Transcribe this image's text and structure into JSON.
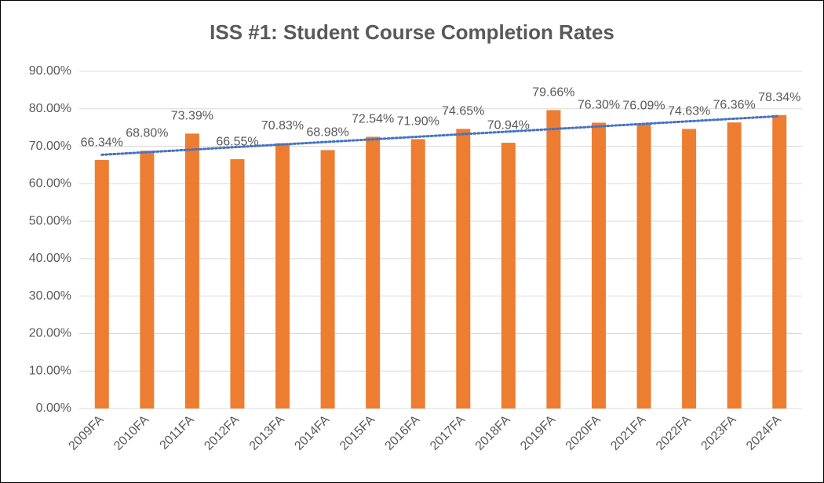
{
  "chart_data": {
    "type": "bar",
    "title": "ISS #1: Student Course Completion Rates",
    "categories": [
      "2009FA",
      "2010FA",
      "2011FA",
      "2012FA",
      "2013FA",
      "2014FA",
      "2015FA",
      "2016FA",
      "2017FA",
      "2018FA",
      "2019FA",
      "2020FA",
      "2021FA",
      "2022FA",
      "2023FA",
      "2024FA"
    ],
    "values": [
      66.34,
      68.8,
      73.39,
      66.55,
      70.83,
      68.98,
      72.54,
      71.9,
      74.65,
      70.94,
      79.66,
      76.3,
      76.09,
      74.63,
      76.36,
      78.34
    ],
    "value_labels": [
      "66.34%",
      "68.80%",
      "73.39%",
      "66.55%",
      "70.83%",
      "68.98%",
      "72.54%",
      "71.90%",
      "74.65%",
      "70.94%",
      "79.66%",
      "76.30%",
      "76.09%",
      "74.63%",
      "76.36%",
      "78.34%"
    ],
    "color": "#ed7d31",
    "ylim": [
      0,
      90
    ],
    "yticks": [
      {
        "value": 0,
        "label": "0.00%"
      },
      {
        "value": 10,
        "label": "10.00%"
      },
      {
        "value": 20,
        "label": "20.00%"
      },
      {
        "value": 30,
        "label": "30.00%"
      },
      {
        "value": 40,
        "label": "40.00%"
      },
      {
        "value": 50,
        "label": "50.00%"
      },
      {
        "value": 60,
        "label": "60.00%"
      },
      {
        "value": 70,
        "label": "70.00%"
      },
      {
        "value": 80,
        "label": "80.00%"
      },
      {
        "value": 90,
        "label": "90.00%"
      }
    ],
    "grid": true,
    "trendline": {
      "type": "linear",
      "color": "#4472c4"
    }
  }
}
